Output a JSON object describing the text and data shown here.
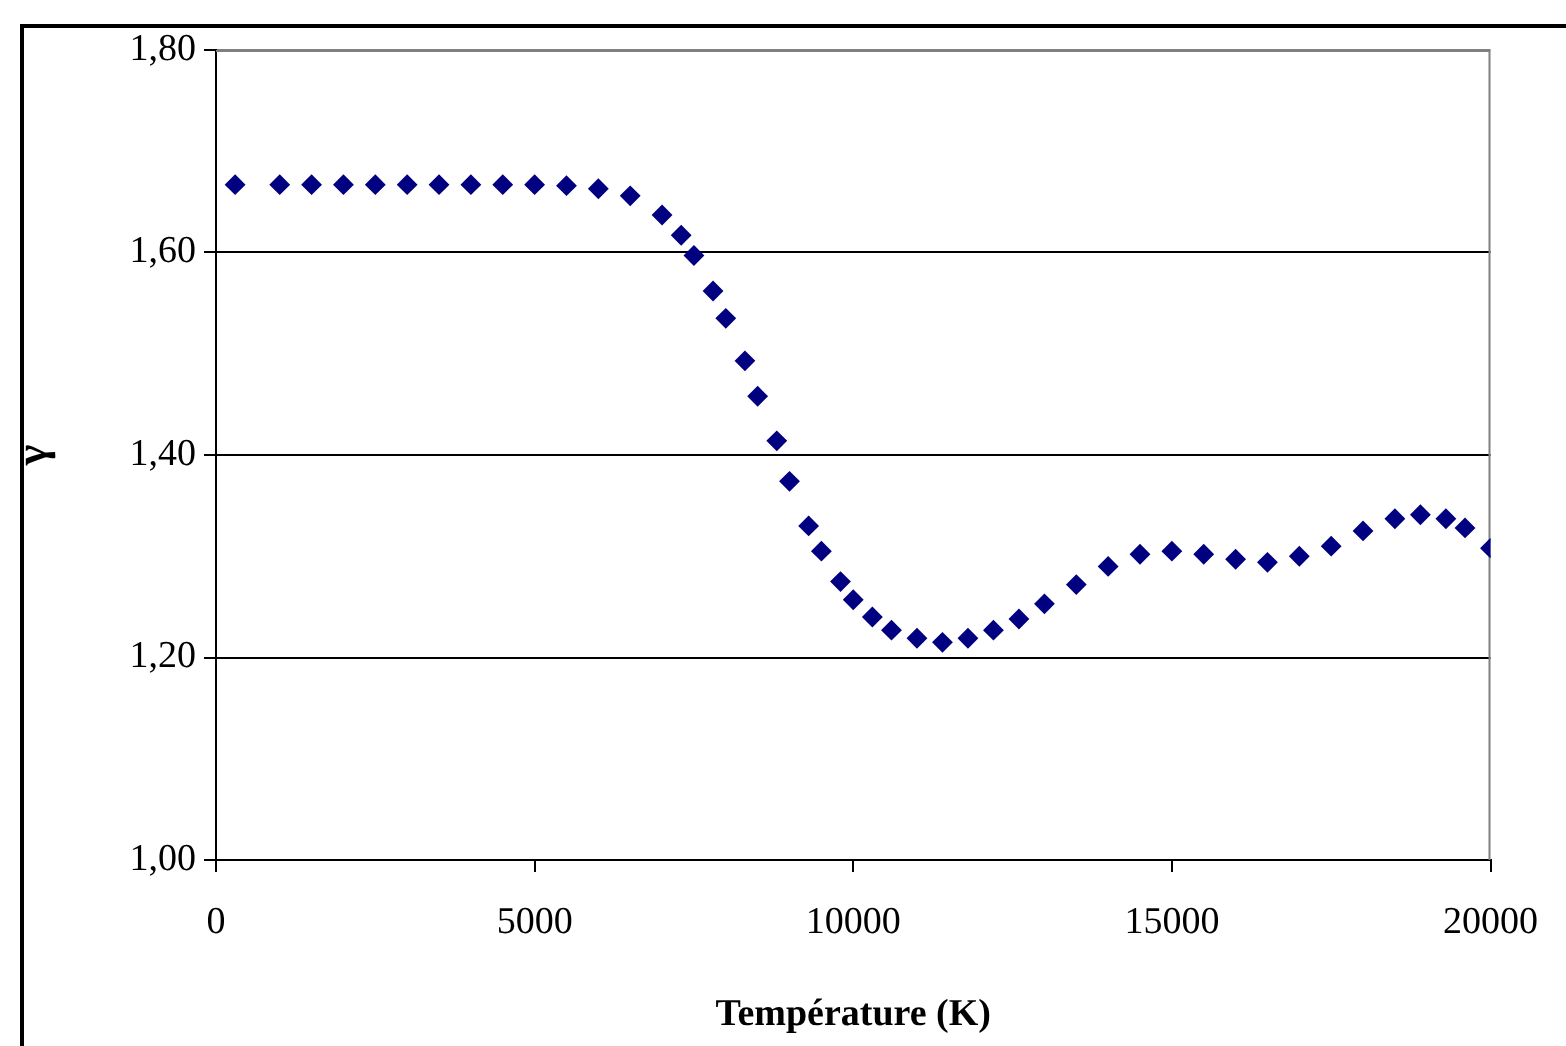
{
  "chart_data": {
    "type": "scatter",
    "xlabel": "Température (K)",
    "ylabel": "γ",
    "marker": "diamond",
    "grid": "y",
    "legend": false,
    "xlim": [
      0,
      20000
    ],
    "xticks": [
      0,
      5000,
      10000,
      15000,
      20000
    ],
    "ylim": [
      1.0,
      1.8
    ],
    "yticks": [
      {
        "value": 1.0,
        "label": "1,00"
      },
      {
        "value": 1.2,
        "label": "1,20"
      },
      {
        "value": 1.4,
        "label": "1,40"
      },
      {
        "value": 1.6,
        "label": "1,60"
      },
      {
        "value": 1.8,
        "label": "1,80"
      }
    ],
    "series": [
      {
        "color": "#000080",
        "x": [
          300,
          1000,
          1500,
          2000,
          2500,
          3000,
          3500,
          4000,
          4500,
          5000,
          5500,
          6000,
          6500,
          7000,
          7300,
          7500,
          7800,
          8000,
          8300,
          8500,
          8800,
          9000,
          9300,
          9500,
          9800,
          10000,
          10300,
          10600,
          11000,
          11400,
          11800,
          12200,
          12600,
          13000,
          13500,
          14000,
          14500,
          15000,
          15500,
          16000,
          16500,
          17000,
          17500,
          18000,
          18500,
          18900,
          19300,
          19600,
          20000
        ],
        "values": [
          1.667,
          1.667,
          1.667,
          1.667,
          1.667,
          1.667,
          1.667,
          1.667,
          1.667,
          1.667,
          1.666,
          1.663,
          1.656,
          1.637,
          1.617,
          1.597,
          1.562,
          1.535,
          1.493,
          1.458,
          1.414,
          1.374,
          1.33,
          1.305,
          1.275,
          1.257,
          1.24,
          1.227,
          1.219,
          1.215,
          1.219,
          1.227,
          1.238,
          1.253,
          1.272,
          1.29,
          1.302,
          1.305,
          1.302,
          1.297,
          1.294,
          1.3,
          1.31,
          1.325,
          1.337,
          1.341,
          1.337,
          1.328,
          1.308
        ]
      }
    ]
  }
}
